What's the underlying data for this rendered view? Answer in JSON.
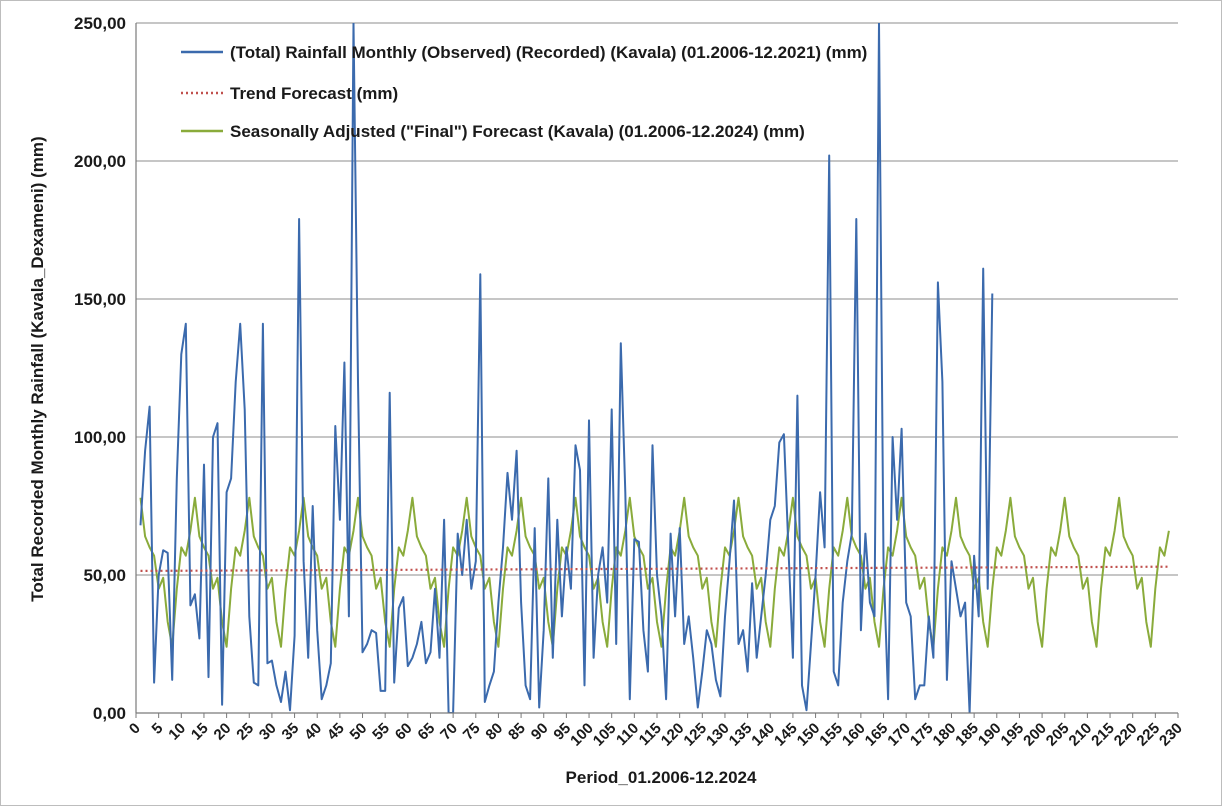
{
  "chart_data": {
    "type": "line",
    "xlabel": "Period_01.2006-12.2024",
    "ylabel": "Total Recorded Monthly Rainfall (Kavala_Dexameni) (mm)",
    "xlim": [
      0,
      230
    ],
    "ylim": [
      0,
      250
    ],
    "x_ticks": [
      "0",
      "5",
      "10",
      "15",
      "20",
      "25",
      "30",
      "35",
      "40",
      "45",
      "50",
      "55",
      "60",
      "65",
      "70",
      "75",
      "80",
      "85",
      "90",
      "95",
      "100",
      "105",
      "110",
      "115",
      "120",
      "125",
      "130",
      "135",
      "140",
      "145",
      "150",
      "155",
      "160",
      "165",
      "170",
      "175",
      "180",
      "185",
      "190",
      "195",
      "200",
      "205",
      "210",
      "215",
      "220",
      "225",
      "230"
    ],
    "y_ticks": [
      "0,00",
      "50,00",
      "100,00",
      "150,00",
      "200,00",
      "250,00"
    ],
    "grid": "horizontal",
    "legend_position": "top-left (inside plot)",
    "series": [
      {
        "name": "(Total) Rainfall Monthly (Observed) (Recorded) (Kavala) (01.2006-12.2021) (mm)",
        "color": "#3b6aad",
        "style": "solid",
        "x_start": 1,
        "values": [
          68,
          95,
          111,
          11,
          50,
          59,
          58,
          12,
          85,
          130,
          141,
          39,
          43,
          27,
          90,
          13,
          100,
          105,
          3,
          80,
          85,
          120,
          141,
          110,
          35,
          11,
          10,
          141,
          18,
          19,
          10,
          4,
          15,
          1,
          28,
          179,
          55,
          20,
          75,
          30,
          5,
          10,
          18,
          104,
          70,
          127,
          35,
          250,
          120,
          22,
          25,
          30,
          29,
          8,
          8,
          116,
          11,
          38,
          42,
          17,
          20,
          25,
          33,
          18,
          22,
          45,
          20,
          70,
          0,
          0,
          65,
          50,
          70,
          45,
          55,
          159,
          4,
          10,
          15,
          40,
          60,
          87,
          70,
          95,
          40,
          10,
          5,
          67,
          2,
          30,
          85,
          20,
          70,
          35,
          60,
          45,
          97,
          88,
          10,
          106,
          20,
          50,
          60,
          40,
          110,
          25,
          134,
          80,
          5,
          63,
          62,
          30,
          15,
          97,
          50,
          35,
          5,
          65,
          35,
          67,
          25,
          35,
          20,
          2,
          15,
          30,
          25,
          12,
          6,
          35,
          55,
          77,
          25,
          30,
          15,
          47,
          20,
          35,
          50,
          70,
          75,
          98,
          101,
          60,
          20,
          115,
          10,
          1,
          25,
          50,
          80,
          60,
          202,
          15,
          10,
          40,
          55,
          65,
          179,
          30,
          65,
          40,
          35,
          260,
          55,
          5,
          100,
          70,
          103,
          40,
          35,
          5,
          10,
          10,
          35,
          20,
          156,
          120,
          12,
          55,
          45,
          35,
          40,
          0,
          57,
          35,
          161,
          45,
          152
        ],
        "note_values": "approximate monthly observed rainfall read from chart"
      },
      {
        "name": "Trend Forecast (mm)",
        "color": "#c0504d",
        "style": "dotted",
        "x_start": 1,
        "x_end": 228,
        "y_start": 51.5,
        "y_end": 53
      },
      {
        "name": "Seasonally Adjusted (\"Final\") Forecast (Kavala) (01.2006-12.2024) (mm)",
        "color": "#8aab3b",
        "style": "solid",
        "x_start": 1,
        "values": [
          78,
          64,
          60,
          57,
          45,
          49,
          33,
          24,
          45,
          60,
          57,
          66,
          78,
          64,
          60,
          57,
          45,
          49,
          33,
          24,
          45,
          60,
          57,
          66,
          78,
          64,
          60,
          57,
          45,
          49,
          33,
          24,
          45,
          60,
          57,
          66,
          78,
          64,
          60,
          57,
          45,
          49,
          33,
          24,
          45,
          60,
          57,
          66,
          78,
          64,
          60,
          57,
          45,
          49,
          33,
          24,
          45,
          60,
          57,
          66,
          78,
          64,
          60,
          57,
          45,
          49,
          33,
          24,
          45,
          60,
          57,
          66,
          78,
          64,
          60,
          57,
          45,
          49,
          33,
          24,
          45,
          60,
          57,
          66,
          78,
          64,
          60,
          57,
          45,
          49,
          33,
          24,
          45,
          60,
          57,
          66,
          78,
          64,
          60,
          57,
          45,
          49,
          33,
          24,
          45,
          60,
          57,
          66,
          78,
          64,
          60,
          57,
          45,
          49,
          33,
          24,
          45,
          60,
          57,
          66,
          78,
          64,
          60,
          57,
          45,
          49,
          33,
          24,
          45,
          60,
          57,
          66,
          78,
          64,
          60,
          57,
          45,
          49,
          33,
          24,
          45,
          60,
          57,
          66,
          78,
          64,
          60,
          57,
          45,
          49,
          33,
          24,
          45,
          60,
          57,
          66,
          78,
          64,
          60,
          57,
          45,
          49,
          33,
          24,
          45,
          60,
          57,
          66,
          78,
          64,
          60,
          57,
          45,
          49,
          33,
          24,
          45,
          60,
          57,
          66,
          78,
          64,
          60,
          57,
          45,
          49,
          33,
          24,
          45,
          60,
          57,
          66,
          78,
          64,
          60,
          57,
          45,
          49,
          33,
          24,
          45,
          60,
          57,
          66,
          78,
          64,
          60,
          57,
          45,
          49,
          33,
          24,
          45,
          60,
          57,
          66,
          78,
          64,
          60,
          57,
          45,
          49,
          33,
          24,
          45,
          60,
          57,
          66
        ]
      }
    ]
  }
}
